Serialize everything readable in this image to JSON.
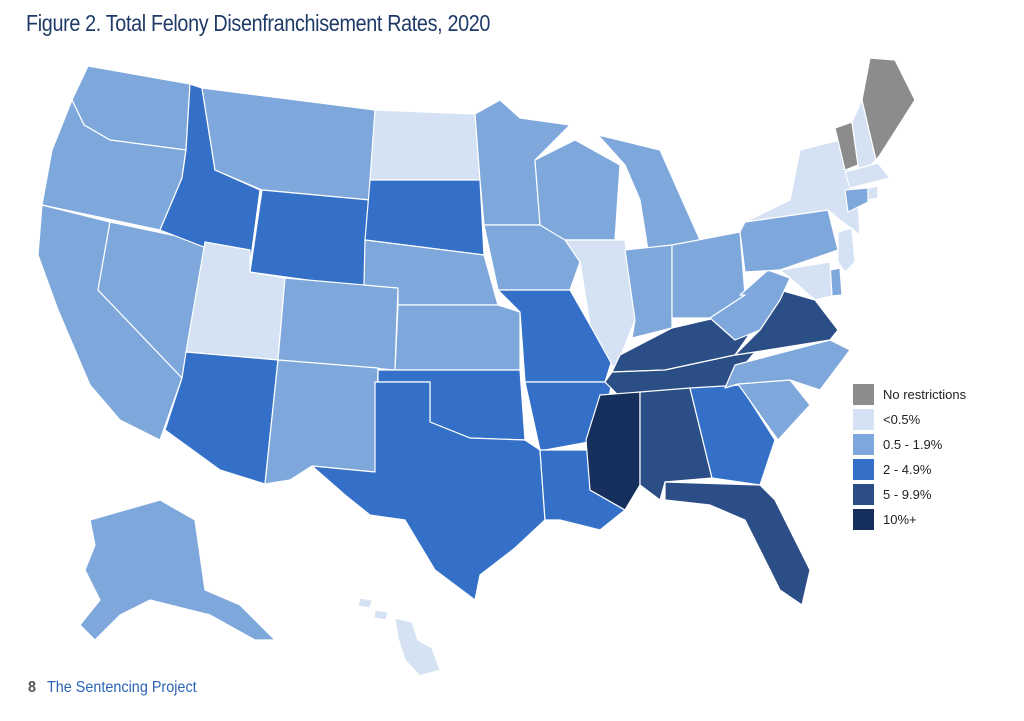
{
  "title": "Figure 2. Total Felony Disenfranchisement Rates, 2020",
  "footer": {
    "page_number": "8",
    "organization": "The Sentencing Project"
  },
  "legend": [
    {
      "key": "none",
      "label": "No restrictions",
      "color": "#8c8c8c"
    },
    {
      "key": "lt05",
      "label": "<0.5%",
      "color": "#d4e2f4"
    },
    {
      "key": "r05",
      "label": "0.5 - 1.9%",
      "color": "#7ea7dc"
    },
    {
      "key": "r2",
      "label": "2 - 4.9%",
      "color": "#3470c8"
    },
    {
      "key": "r5",
      "label": "5 - 9.9%",
      "color": "#2c4e86"
    },
    {
      "key": "r10",
      "label": "10%+",
      "color": "#172f5c"
    }
  ],
  "states": {
    "WA": "r05",
    "OR": "r05",
    "CA": "r05",
    "NV": "r05",
    "ID": "r2",
    "MT": "r05",
    "WY": "r2",
    "UT": "lt05",
    "AZ": "r2",
    "CO": "r05",
    "NM": "r05",
    "ND": "lt05",
    "SD": "r2",
    "NE": "r05",
    "KS": "r05",
    "OK": "r2",
    "TX": "r2",
    "MN": "r05",
    "IA": "r05",
    "MO": "r2",
    "AR": "r2",
    "LA": "r2",
    "WI": "r05",
    "IL": "lt05",
    "MI": "r05",
    "IN": "r05",
    "OH": "r05",
    "KY": "r5",
    "TN": "r5",
    "MS": "r10",
    "AL": "r5",
    "GA": "r2",
    "FL": "r5",
    "SC": "r05",
    "NC": "r05",
    "VA": "r5",
    "WV": "r05",
    "PA": "r05",
    "NY": "lt05",
    "VT": "none",
    "ME": "none",
    "NH": "lt05",
    "MA": "lt05",
    "RI": "lt05",
    "CT": "r05",
    "NJ": "lt05",
    "DE": "r05",
    "MD": "lt05",
    "AK": "r05",
    "HI": "lt05"
  }
}
